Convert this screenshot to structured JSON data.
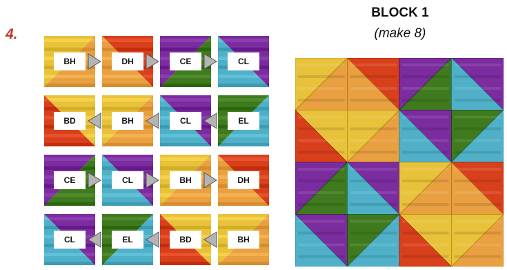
{
  "step_label": "4.",
  "block": {
    "title": "BLOCK 1",
    "subtitle": "(make 8)"
  },
  "rows": [
    {
      "direction": "right",
      "tiles": [
        "BH",
        "DH",
        "CE",
        "CL"
      ]
    },
    {
      "direction": "left",
      "tiles": [
        "BD",
        "BH",
        "CL",
        "EL"
      ]
    },
    {
      "direction": "right",
      "tiles": [
        "CE",
        "CL",
        "BH",
        "DH"
      ]
    },
    {
      "direction": "left",
      "tiles": [
        "CL",
        "EL",
        "BD",
        "BH"
      ]
    }
  ],
  "fabric_colors": {
    "B": "#e8c23a",
    "C": "#7b2c9e",
    "D": "#d8401c",
    "E": "#3f7a1e",
    "H": "#e8a040",
    "L": "#4fb0c8"
  },
  "arrow_color": "#b4b4b4"
}
